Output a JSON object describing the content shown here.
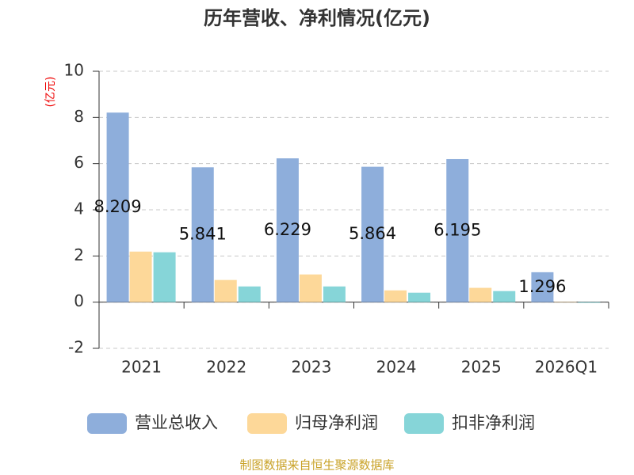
{
  "chart_data": {
    "type": "bar",
    "title": "历年营收、净利情况(亿元)",
    "y_label": "(亿元)",
    "source": "制图数据来自恒生聚源数据库",
    "categories": [
      "2021",
      "2022",
      "2023",
      "2024",
      "2025",
      "2026Q1"
    ],
    "series": [
      {
        "name": "营业总收入",
        "color": "#8eaedb",
        "values": [
          8.209,
          5.841,
          6.229,
          5.864,
          6.195,
          1.296
        ]
      },
      {
        "name": "归母净利润",
        "color": "#fdd899",
        "values": [
          2.19,
          0.96,
          1.2,
          0.51,
          0.62,
          0.01
        ]
      },
      {
        "name": "扣非净利润",
        "color": "#86d5d8",
        "values": [
          2.16,
          0.68,
          0.68,
          0.41,
          0.48,
          -0.03
        ]
      }
    ],
    "labeled_series": 0,
    "ylim": [
      -2,
      10
    ],
    "yticks": [
      -2,
      0,
      2,
      4,
      6,
      8,
      10
    ],
    "grid": true
  }
}
